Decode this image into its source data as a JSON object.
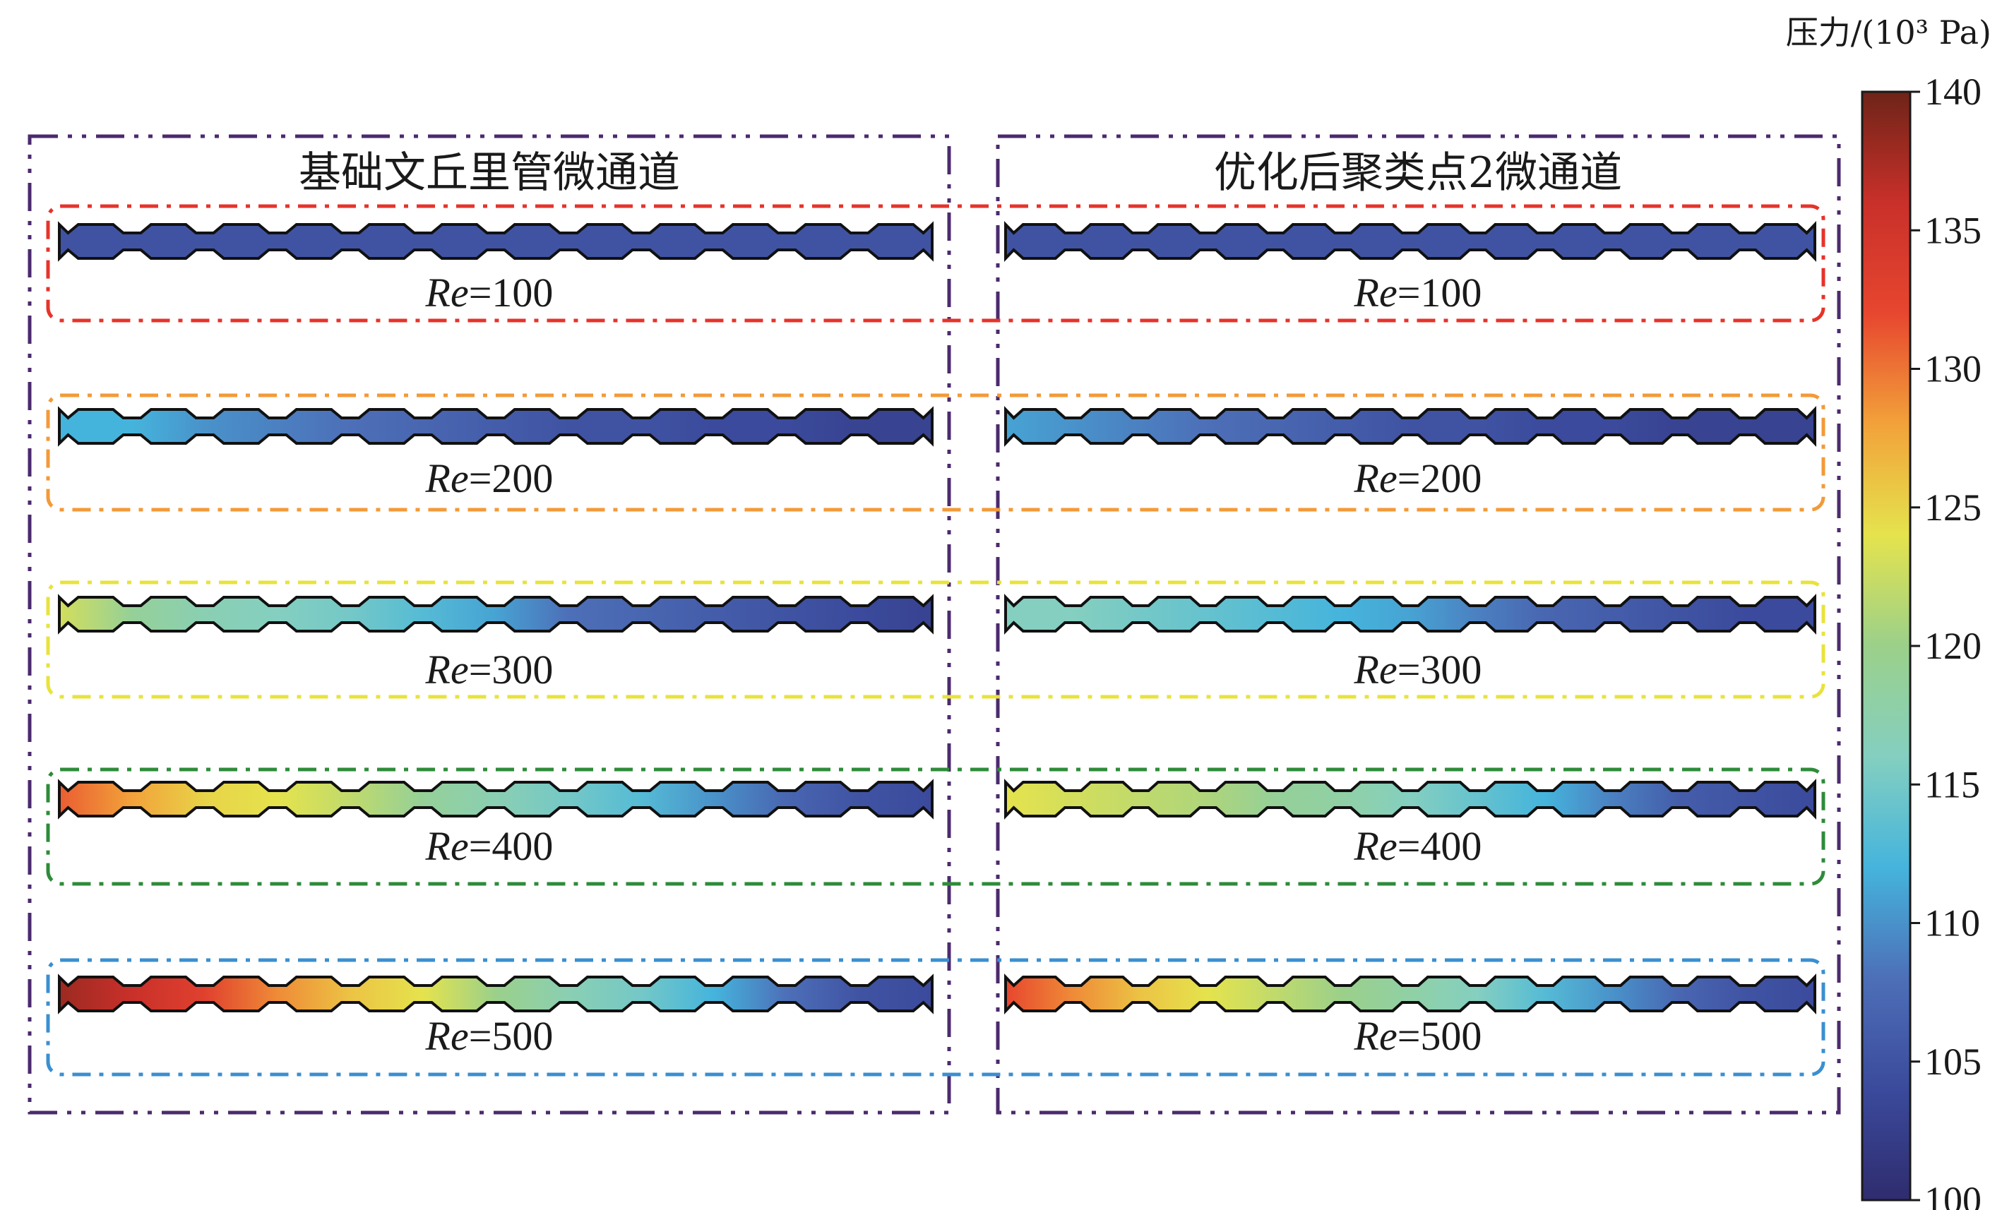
{
  "panels": [
    {
      "id": "baseline",
      "title": "基础文丘里管微通道"
    },
    {
      "id": "optimized",
      "title": "优化后聚类点2微通道"
    }
  ],
  "colorbar": {
    "unit": "压力/(10³ Pa)",
    "ticks": [
      "140",
      "135",
      "130",
      "125",
      "120",
      "115",
      "110",
      "105",
      "100"
    ],
    "min": 100,
    "max": 140,
    "colormap": [
      "#2f2c6e",
      "#3b4a9c",
      "#4d6fb8",
      "#45b4dc",
      "#84cfc0",
      "#9bd08a",
      "#e5e34d",
      "#f2a23a",
      "#e7462f",
      "#c9302a",
      "#6e2418"
    ]
  },
  "rows": [
    {
      "re_prefix": "Re",
      "re_value": "=100",
      "frame_color": "#e6332a",
      "baseline_pressure": [
        105,
        105,
        105,
        105,
        105,
        105,
        105,
        105,
        105,
        105,
        105,
        105,
        105
      ],
      "optimized_pressure": [
        105,
        105,
        105,
        105,
        105,
        105,
        105,
        105,
        105,
        105,
        105,
        105,
        105
      ]
    },
    {
      "re_prefix": "Re",
      "re_value": "=200",
      "frame_color": "#f29a38",
      "baseline_pressure": [
        112,
        112,
        110,
        109,
        108,
        107,
        106,
        105,
        105,
        104,
        104,
        103,
        103
      ],
      "optimized_pressure": [
        111,
        110,
        109,
        108,
        107,
        106,
        105,
        105,
        104,
        104,
        103,
        103,
        103
      ]
    },
    {
      "re_prefix": "Re",
      "re_value": "=300",
      "frame_color": "#e8e33b",
      "baseline_pressure": [
        123,
        119,
        117,
        116,
        115,
        113,
        111,
        108,
        107,
        106,
        105,
        104,
        103
      ],
      "optimized_pressure": [
        116,
        116,
        115,
        114,
        113,
        112,
        111,
        109,
        107,
        106,
        105,
        104,
        104
      ]
    },
    {
      "re_prefix": "Re",
      "re_value": "=400",
      "frame_color": "#2e8b3a",
      "baseline_pressure": [
        131,
        128,
        125,
        124,
        122,
        119,
        117,
        115,
        113,
        110,
        107,
        105,
        104
      ],
      "optimized_pressure": [
        124,
        123,
        122,
        121,
        119,
        118,
        116,
        114,
        112,
        109,
        106,
        105,
        104
      ]
    },
    {
      "re_prefix": "Re",
      "re_value": "=500",
      "frame_color": "#3a8fd0",
      "baseline_pressure": [
        138,
        136,
        133,
        129,
        126,
        124,
        120,
        117,
        115,
        112,
        108,
        105,
        104
      ],
      "optimized_pressure": [
        132,
        129,
        126,
        124,
        122,
        120,
        118,
        116,
        113,
        110,
        107,
        105,
        104
      ]
    }
  ]
}
